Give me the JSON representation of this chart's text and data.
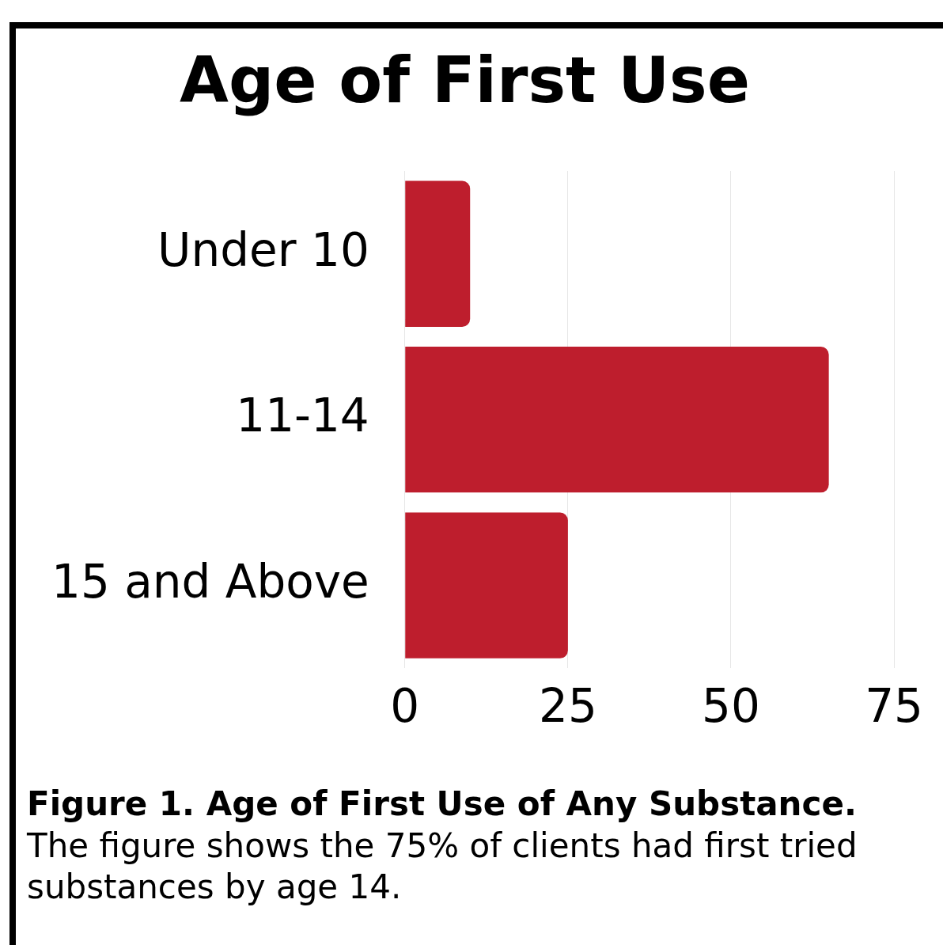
{
  "chart_data": {
    "type": "bar",
    "orientation": "horizontal",
    "title": "Age of First Use",
    "categories": [
      "Under 10",
      "11-14",
      "15 and Above"
    ],
    "values": [
      10,
      65,
      25
    ],
    "color": "#be1e2d",
    "xlim": [
      0,
      75
    ],
    "xticks": [
      0,
      25,
      50,
      75
    ],
    "grid": "x",
    "annotations": [
      "Figure 1. Age of First Use of Any Substance.",
      "The figure shows the 75% of clients had first tried substances by age 14."
    ]
  }
}
